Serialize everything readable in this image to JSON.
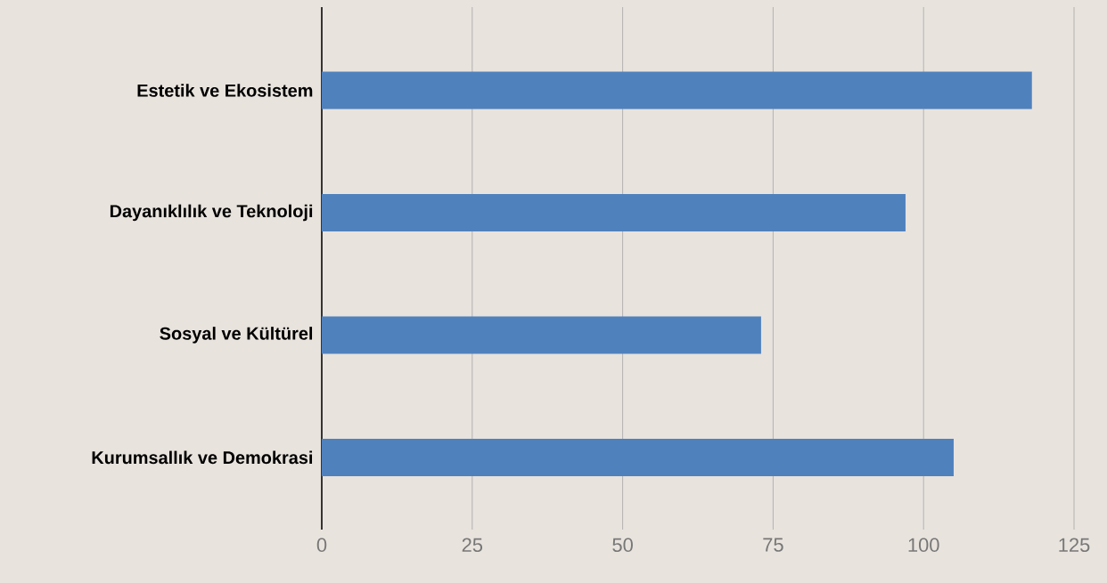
{
  "chart_data": {
    "type": "bar",
    "orientation": "horizontal",
    "categories": [
      "Estetik ve Ekosistem",
      "Dayanıklılık ve Teknoloji",
      "Sosyal ve Kültürel",
      "Kurumsallık ve Demokrasi"
    ],
    "values": [
      118,
      97,
      73,
      105
    ],
    "color": "#4f81bd",
    "xlim": [
      0,
      125
    ],
    "xticks": [
      0,
      25,
      50,
      75,
      100,
      125
    ],
    "grid": "x"
  }
}
